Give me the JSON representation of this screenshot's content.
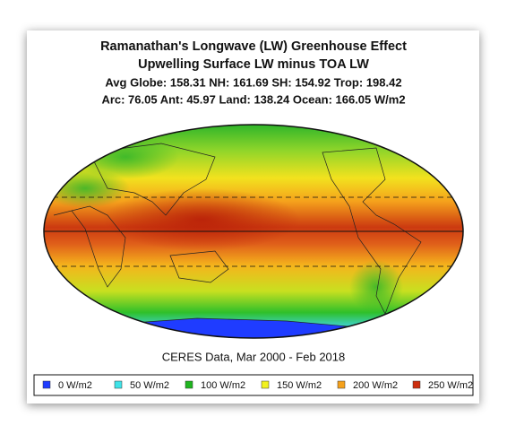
{
  "title_lines": [
    "Ramanathan's Longwave (LW) Greenhouse Effect",
    "Upwelling Surface LW minus TOA LW",
    "Avg Globe: 158.31  NH: 161.69  SH: 154.92  Trop: 198.42",
    "Arc: 76.05  Ant: 45.97  Land: 138.24  Ocean: 166.05 W/m2"
  ],
  "caption": "CERES Data, Mar 2000 - Feb 2018",
  "legend": [
    {
      "label": "0 W/m2",
      "color": "#1f3cff"
    },
    {
      "label": "50 W/m2",
      "color": "#3fe3e8"
    },
    {
      "label": "100 W/m2",
      "color": "#1fb51f"
    },
    {
      "label": "150 W/m2",
      "color": "#f2f21e"
    },
    {
      "label": "200 W/m2",
      "color": "#f5a11c"
    },
    {
      "label": "250 W/m2",
      "color": "#cc2e0e"
    }
  ]
}
